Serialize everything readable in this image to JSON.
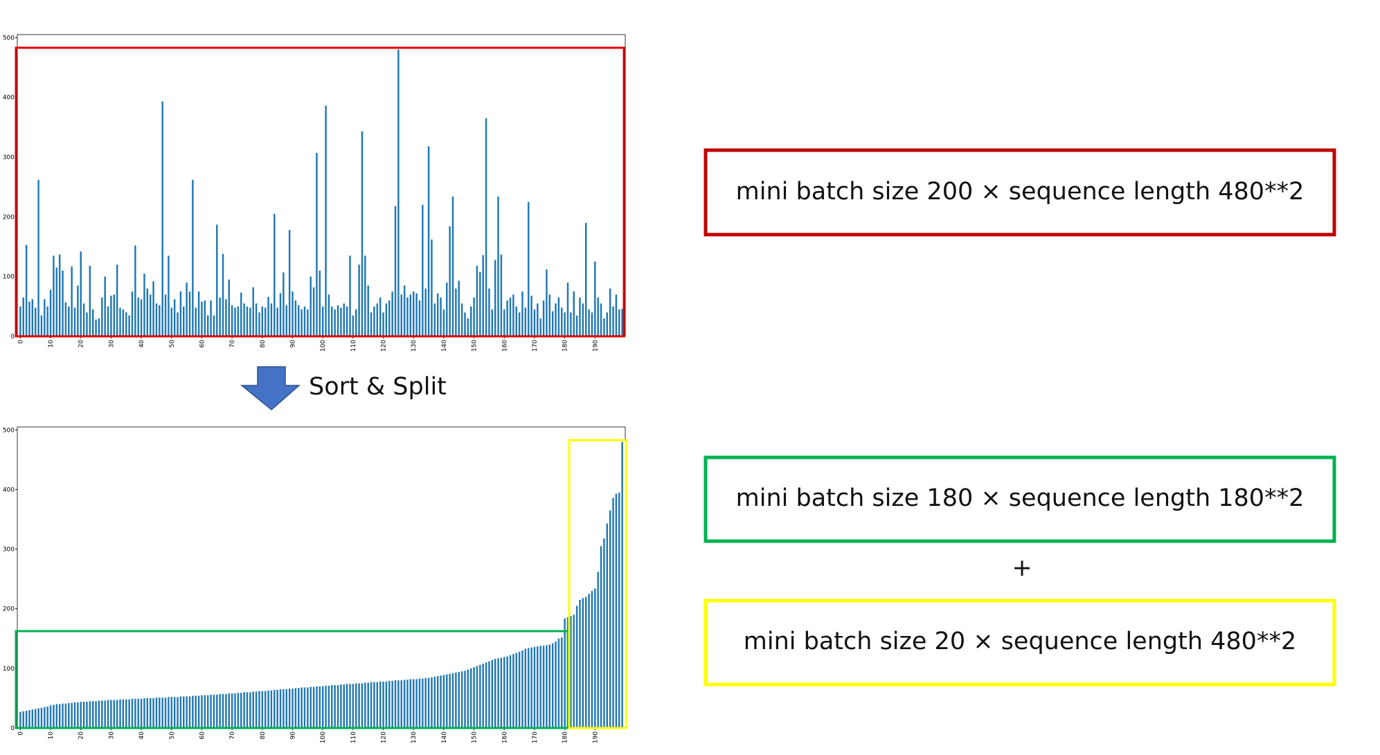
{
  "chart_data": [
    {
      "type": "bar",
      "color": "#1f77b4",
      "xlim": [
        -1,
        200
      ],
      "ylim": [
        0,
        505
      ],
      "xticks": [
        0,
        10,
        20,
        30,
        40,
        50,
        60,
        70,
        80,
        90,
        100,
        110,
        120,
        130,
        140,
        150,
        160,
        170,
        180,
        190
      ],
      "yticks": [
        0,
        100,
        200,
        300,
        400,
        500
      ],
      "values": [
        50,
        65,
        153,
        58,
        62,
        48,
        262,
        35,
        62,
        50,
        78,
        135,
        115,
        137,
        110,
        57,
        50,
        117,
        48,
        85,
        142,
        55,
        40,
        118,
        45,
        28,
        30,
        65,
        100,
        50,
        68,
        70,
        120,
        48,
        45,
        40,
        35,
        75,
        152,
        65,
        62,
        105,
        80,
        70,
        92,
        55,
        52,
        393,
        70,
        135,
        48,
        62,
        40,
        75,
        50,
        90,
        75,
        262,
        48,
        75,
        58,
        60,
        35,
        60,
        35,
        187,
        65,
        138,
        62,
        95,
        52,
        48,
        50,
        73,
        55,
        50,
        48,
        82,
        55,
        40,
        50,
        48,
        66,
        55,
        205,
        48,
        72,
        107,
        52,
        178,
        75,
        60,
        52,
        45,
        50,
        45,
        100,
        82,
        307,
        110,
        50,
        386,
        70,
        50,
        45,
        52,
        48,
        55,
        50,
        135,
        35,
        45,
        120,
        343,
        135,
        85,
        40,
        50,
        55,
        65,
        40,
        55,
        60,
        75,
        218,
        480,
        70,
        85,
        65,
        70,
        75,
        72,
        60,
        220,
        80,
        318,
        162,
        55,
        72,
        65,
        45,
        90,
        184,
        234,
        80,
        93,
        55,
        40,
        30,
        50,
        65,
        118,
        108,
        136,
        365,
        80,
        45,
        128,
        234,
        137,
        45,
        60,
        65,
        70,
        50,
        40,
        75,
        48,
        225,
        68,
        45,
        55,
        30,
        60,
        112,
        70,
        42,
        55,
        65,
        48,
        40,
        90,
        40,
        75,
        35,
        65,
        55,
        190,
        45,
        40,
        125,
        65,
        55,
        30,
        40,
        80,
        50,
        70,
        45,
        46
      ]
    },
    {
      "type": "bar",
      "color": "#1f77b4",
      "xlim": [
        -1,
        200
      ],
      "ylim": [
        0,
        505
      ],
      "xticks": [
        0,
        10,
        20,
        30,
        40,
        50,
        60,
        70,
        80,
        90,
        100,
        110,
        120,
        130,
        140,
        150,
        160,
        170,
        180,
        190
      ],
      "yticks": [
        0,
        100,
        200,
        300,
        400,
        500
      ],
      "values": [
        27,
        28,
        29,
        30,
        31,
        32,
        33,
        34,
        35,
        36,
        38,
        39,
        40,
        40,
        41,
        41,
        42,
        42,
        43,
        43,
        44,
        44,
        44,
        45,
        45,
        45,
        46,
        46,
        46,
        47,
        47,
        47,
        47,
        48,
        48,
        48,
        48,
        49,
        49,
        49,
        49,
        50,
        50,
        50,
        50,
        51,
        51,
        51,
        51,
        52,
        52,
        52,
        52,
        53,
        53,
        53,
        53,
        54,
        54,
        54,
        55,
        55,
        55,
        56,
        56,
        56,
        57,
        57,
        57,
        58,
        58,
        58,
        59,
        59,
        60,
        60,
        60,
        61,
        61,
        62,
        62,
        62,
        63,
        63,
        64,
        64,
        65,
        65,
        65,
        66,
        66,
        67,
        67,
        68,
        68,
        68,
        69,
        69,
        70,
        70,
        70,
        71,
        71,
        72,
        72,
        72,
        73,
        73,
        74,
        74,
        74,
        75,
        75,
        75,
        76,
        76,
        77,
        77,
        77,
        78,
        78,
        78,
        79,
        79,
        80,
        80,
        80,
        81,
        81,
        82,
        82,
        82,
        83,
        83,
        84,
        84,
        85,
        86,
        87,
        88,
        89,
        90,
        91,
        92,
        93,
        94,
        95,
        96,
        98,
        100,
        102,
        104,
        106,
        108,
        110,
        112,
        114,
        116,
        117,
        118,
        119,
        120,
        122,
        124,
        126,
        128,
        130,
        133,
        134,
        135,
        136,
        137,
        138,
        138,
        139,
        140,
        142,
        145,
        150,
        152,
        184,
        186,
        188,
        190,
        205,
        215,
        218,
        220,
        225,
        230,
        234,
        262,
        305,
        318,
        343,
        365,
        386,
        393,
        395,
        480
      ]
    }
  ],
  "arrow_label": "Sort & Split",
  "boxes": [
    "mini batch size 200 × sequence length 480**2",
    "mini batch size 180 × sequence length 180**2",
    "+",
    "mini batch size 20 × sequence length 480**2"
  ]
}
